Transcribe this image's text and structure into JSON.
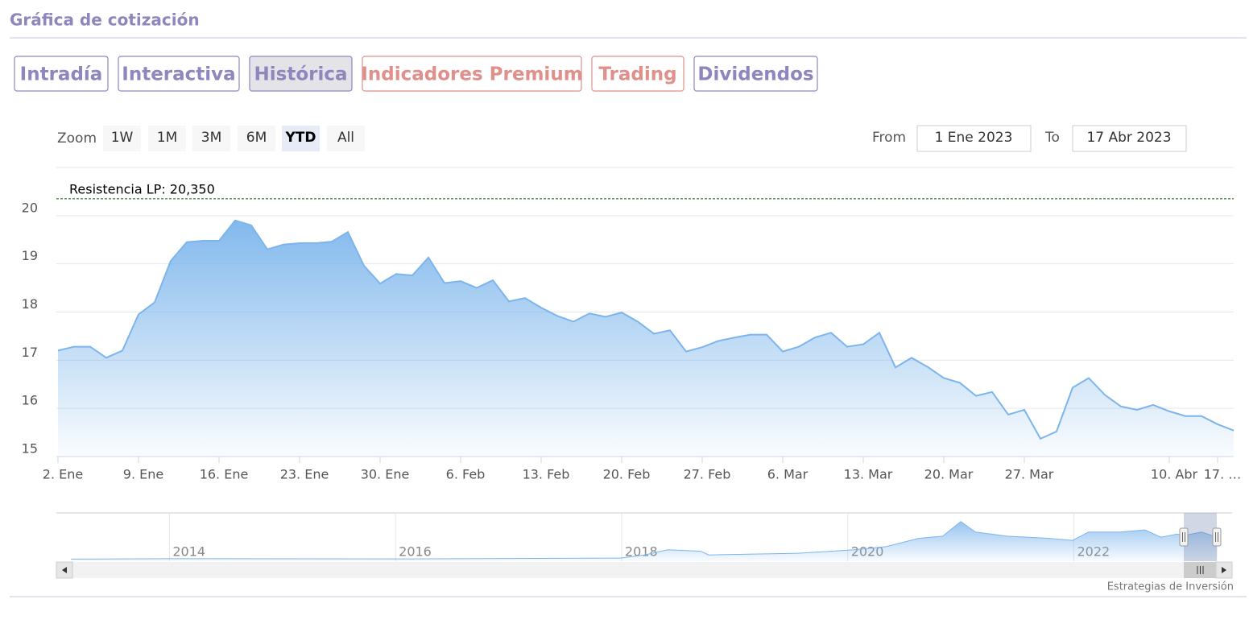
{
  "header": {
    "title": "Gráfica de cotización"
  },
  "tabs": [
    "Intradía",
    "Interactiva",
    "Histórica",
    "Indicadores Premium",
    "Trading",
    "Dividendos"
  ],
  "range_selector": {
    "label": "Zoom",
    "buttons": [
      "1W",
      "1M",
      "3M",
      "6M",
      "YTD",
      "All"
    ]
  },
  "date_inputs": {
    "from_label": "From",
    "from": "1 Ene 2023",
    "to_label": "To",
    "to": "17 Abr 2023"
  },
  "chart_data": {
    "type": "area",
    "categories": [
      "2. Ene",
      null,
      null,
      null,
      null,
      "9. Ene",
      null,
      null,
      null,
      null,
      "16. Ene",
      null,
      null,
      null,
      null,
      "23. Ene",
      null,
      null,
      null,
      null,
      "30. Ene",
      null,
      null,
      null,
      null,
      "6. Feb",
      null,
      null,
      null,
      null,
      "13. Feb",
      null,
      null,
      null,
      null,
      "20. Feb",
      null,
      null,
      null,
      null,
      "27. Feb",
      null,
      null,
      null,
      null,
      "6. Mar",
      null,
      null,
      null,
      null,
      "13. Mar",
      null,
      null,
      null,
      null,
      "20. Mar",
      null,
      null,
      null,
      null,
      "27. Mar",
      null,
      null,
      null,
      null,
      null,
      null,
      null,
      null,
      "10. Abr",
      null,
      null,
      "17. …",
      null
    ],
    "series": [
      {
        "color": "#7cb5ec",
        "values": [
          17.2,
          17.28,
          17.28,
          17.05,
          17.2,
          17.95,
          18.2,
          19.06,
          19.45,
          19.48,
          19.48,
          19.9,
          19.8,
          19.3,
          19.4,
          19.43,
          19.43,
          19.46,
          19.66,
          18.96,
          18.59,
          18.79,
          18.76,
          19.13,
          18.6,
          18.64,
          18.5,
          18.66,
          18.22,
          18.29,
          18.09,
          17.92,
          17.8,
          17.97,
          17.9,
          17.99,
          17.8,
          17.55,
          17.62,
          17.18,
          17.27,
          17.4,
          17.47,
          17.53,
          17.53,
          17.18,
          17.28,
          17.47,
          17.57,
          17.28,
          17.33,
          17.57,
          16.85,
          17.05,
          16.86,
          16.63,
          16.53,
          16.26,
          16.34,
          15.87,
          15.97,
          15.37,
          15.52,
          16.43,
          16.63,
          16.28,
          16.04,
          15.97,
          16.07,
          15.94,
          15.84,
          15.84,
          15.67,
          15.54
        ]
      }
    ],
    "ylim": [
      15,
      21
    ],
    "yticks": [
      15,
      16,
      17,
      18,
      19,
      20
    ],
    "grid": true,
    "plot_line": {
      "value": 20.35,
      "label": "Resistencia LP: 20,350",
      "color": "#006400"
    }
  },
  "navigator": {
    "type": "area",
    "color": "#7cb5ec",
    "x": [
      2013.13,
      2014,
      2016,
      2017.99,
      2018.2,
      2018.41,
      2018.7,
      2018.77,
      2019.27,
      2019.56,
      2019.77,
      2020.06,
      2020.34,
      2020.63,
      2020.84,
      2021.0,
      2021.13,
      2021.41,
      2021.77,
      2021.99,
      2022.13,
      2022.41,
      2022.63,
      2022.77,
      2022.91,
      2022.99,
      2023.13,
      2023.27
    ],
    "values": [
      1,
      1.2,
      1.1,
      1.5,
      3,
      5.5,
      4.8,
      3,
      3.5,
      3.8,
      4.5,
      5.5,
      7,
      11,
      12,
      19,
      14,
      12,
      11,
      10,
      14,
      14,
      15,
      11.5,
      13,
      12.5,
      14,
      11.5
    ],
    "xlim": [
      2013,
      2023.4
    ],
    "ylim": [
      0,
      22
    ],
    "xticks": [
      2014,
      2016,
      2018,
      2020,
      2022
    ]
  },
  "credits": "Estrategias de Inversión"
}
